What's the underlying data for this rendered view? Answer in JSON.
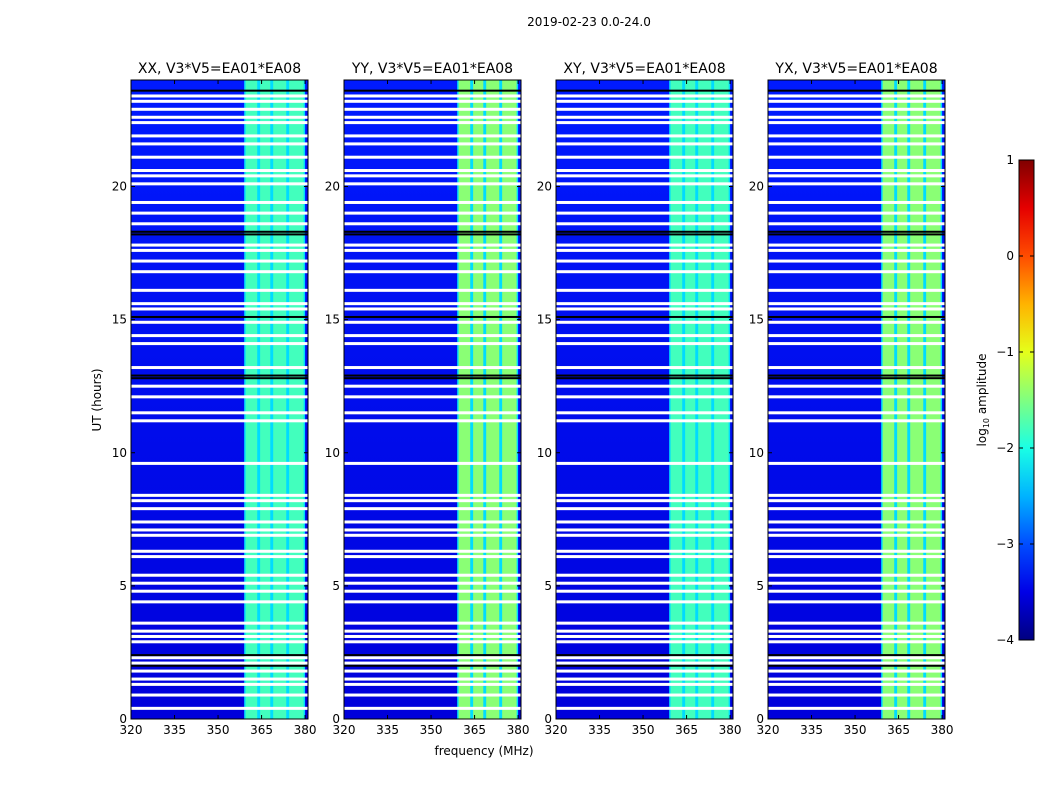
{
  "chart_data": {
    "type": "heatmap",
    "suptitle": "2019-02-23 0.0-24.0",
    "xlabel": "frequency (MHz)",
    "ylabel": "UT (hours)",
    "xlim": [
      320,
      381
    ],
    "ylim": [
      0,
      24
    ],
    "xticks": [
      320,
      335,
      350,
      365,
      380
    ],
    "xtick_labels": [
      "320",
      "335",
      "350",
      "365",
      "380"
    ],
    "yticks": [
      0,
      5,
      10,
      15,
      20
    ],
    "ytick_labels": [
      "0",
      "5",
      "10",
      "15",
      "20"
    ],
    "panels": [
      {
        "title": "XX, V3*V5=EA01*EA08",
        "pol": "XX"
      },
      {
        "title": "YY, V3*V5=EA01*EA08",
        "pol": "YY"
      },
      {
        "title": "XY, V3*V5=EA01*EA08",
        "pol": "XY"
      },
      {
        "title": "YX, V3*V5=EA01*EA08",
        "pol": "YX"
      }
    ],
    "colorbar": {
      "label_prefix": "log",
      "label_sub": "10",
      "label_suffix": " amplitude",
      "range": [
        -4,
        1
      ],
      "ticks": [
        -4,
        -3,
        -2,
        -1,
        0,
        1
      ],
      "tick_labels": [
        "−4",
        "−3",
        "−2",
        "−1",
        "0",
        "1"
      ],
      "colormap": "jet"
    },
    "background_log_amplitude": -3.4,
    "rfi_band_mhz": [
      359,
      380
    ],
    "rfi_channels_mhz": [
      [
        359.5,
        363.5
      ],
      [
        364.5,
        368.0
      ],
      [
        369.0,
        373.5
      ],
      [
        374.5,
        379.5
      ]
    ],
    "rfi_log_amplitude": -1.8,
    "flagged_white_hours": [
      0.4,
      0.9,
      1.3,
      1.5,
      1.8,
      2.1,
      2.3,
      2.9,
      3.1,
      3.3,
      3.6,
      4.4,
      4.8,
      5.1,
      5.4,
      6.1,
      6.3,
      6.9,
      7.1,
      7.4,
      7.9,
      8.2,
      8.4,
      9.6,
      11.2,
      11.5,
      12.1,
      12.5,
      13.2,
      14.1,
      14.4,
      14.9,
      15.4,
      15.6,
      16.1,
      16.8,
      17.2,
      17.6,
      17.8,
      18.6,
      19.0,
      19.4,
      20.1,
      20.4,
      20.6,
      21.1,
      21.6,
      21.9,
      22.4,
      22.6,
      22.9,
      23.2,
      23.4
    ],
    "flagged_black_hours": [
      2.0,
      2.4,
      12.8,
      12.9,
      15.1,
      18.2,
      18.3,
      23.6
    ]
  }
}
